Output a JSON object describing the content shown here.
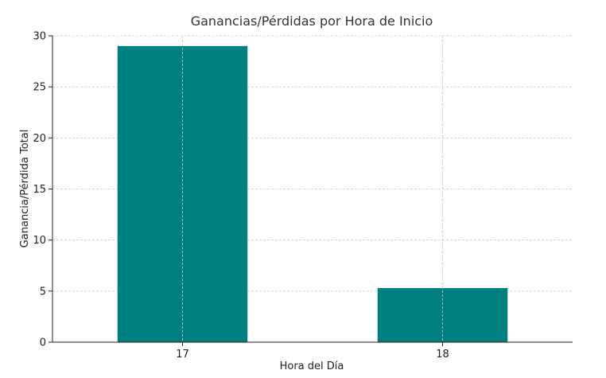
{
  "chart_data": {
    "type": "bar",
    "title": "Ganancias/Pérdidas por Hora de Inicio",
    "xlabel": "Hora del Día",
    "ylabel": "Ganancia/Pérdida Total",
    "categories": [
      "17",
      "18"
    ],
    "values": [
      29.0,
      5.3
    ],
    "ylim": [
      0,
      30
    ],
    "yticks": [
      0,
      5,
      10,
      15,
      20,
      25,
      30
    ],
    "grid": true,
    "bar_color": "#008080"
  }
}
